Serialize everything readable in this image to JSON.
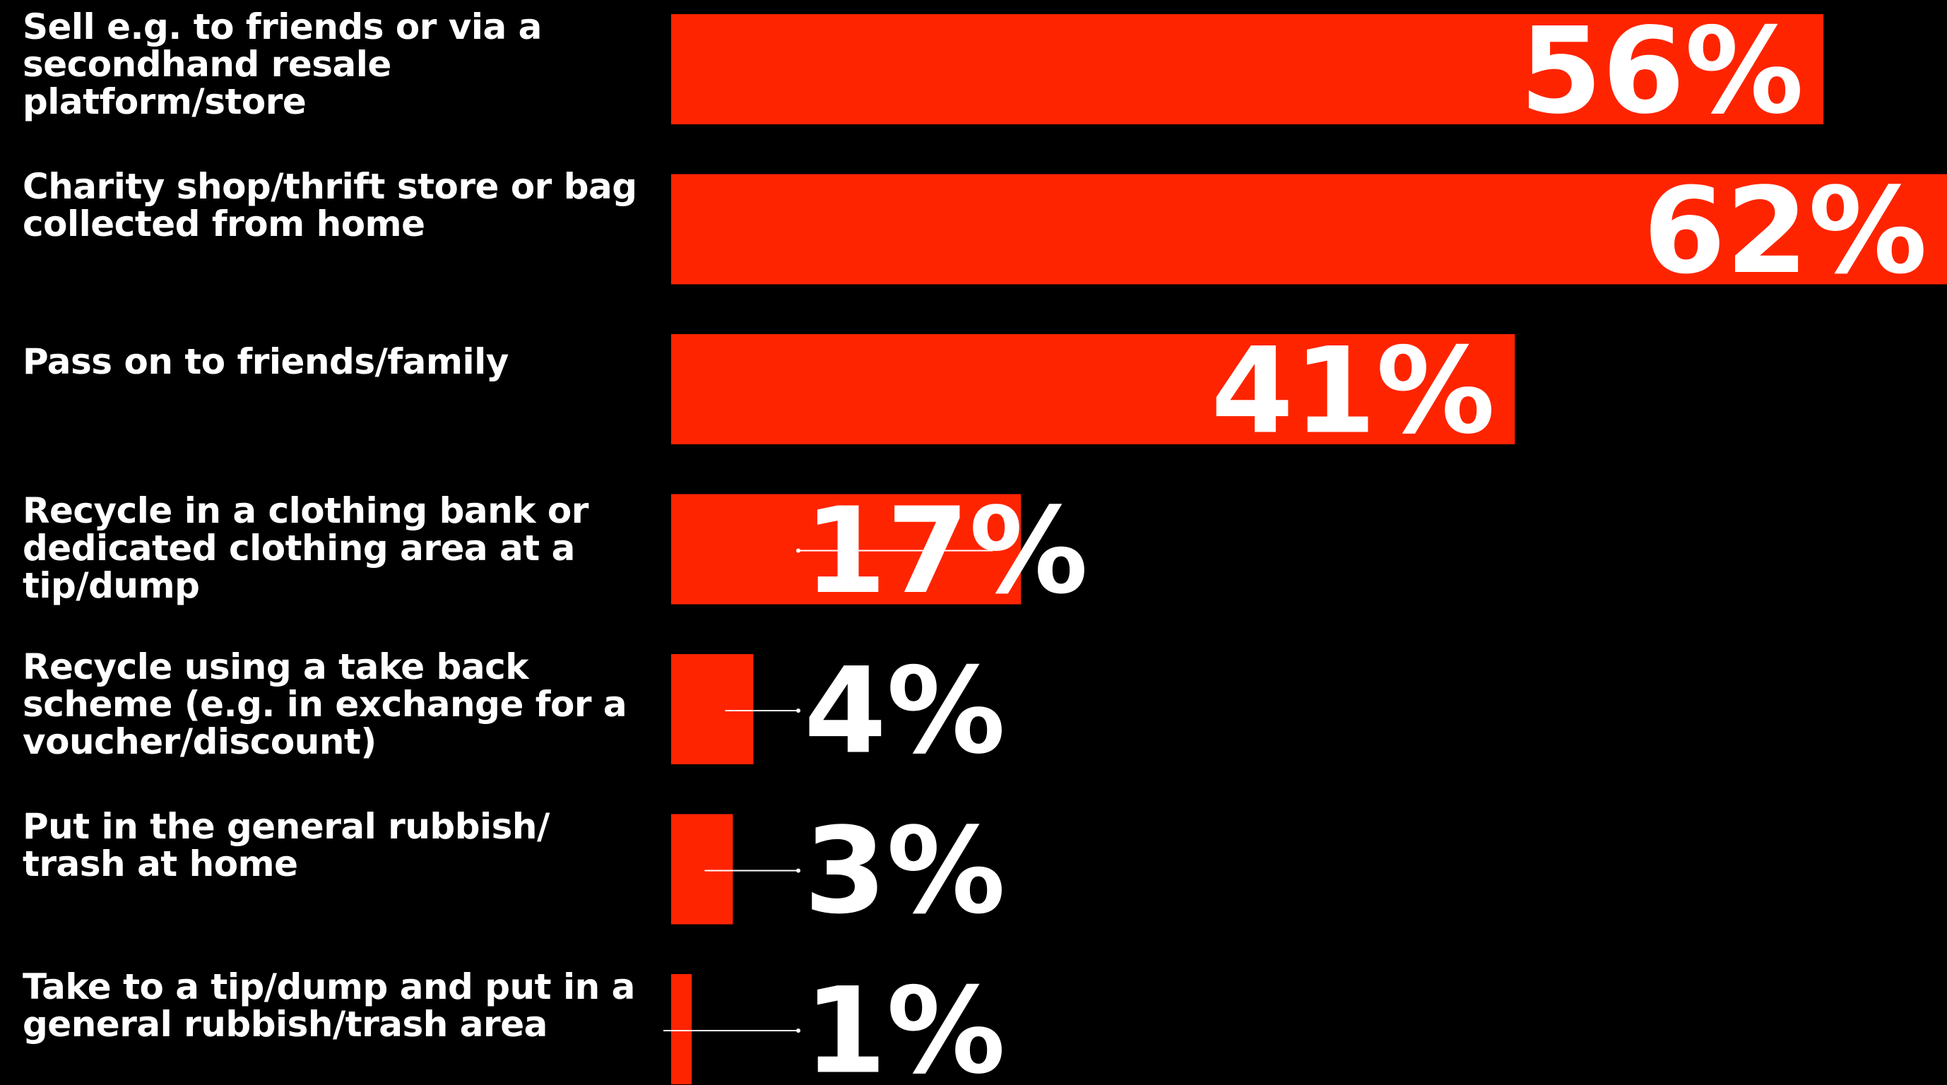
{
  "chart_data": {
    "type": "bar",
    "orientation": "horizontal",
    "title": "",
    "xlabel": "",
    "ylabel": "",
    "xlim": [
      0,
      62
    ],
    "bar_color": "#ff2400",
    "background": "#000000",
    "text_color": "#ffffff",
    "grid": false,
    "legend": "none",
    "categories": [
      "Sell e.g. to friends or via a secondhand resale platform/store",
      "Charity shop/thrift store or bag collected from home",
      "Pass on to friends/family",
      "Recycle in a clothing bank or dedicated clothing area at a tip/dump",
      "Recycle using a take back scheme (e.g. in exchange for a voucher/discount)",
      "Put in the general rubbish/ trash at home",
      "Take to a tip/dump and put in a general rubbish/trash area"
    ],
    "values": [
      56,
      62,
      41,
      17,
      4,
      3,
      1
    ],
    "value_labels": [
      "56%",
      "62%",
      "41%",
      "17%",
      "4%",
      "3%",
      "1%"
    ]
  }
}
